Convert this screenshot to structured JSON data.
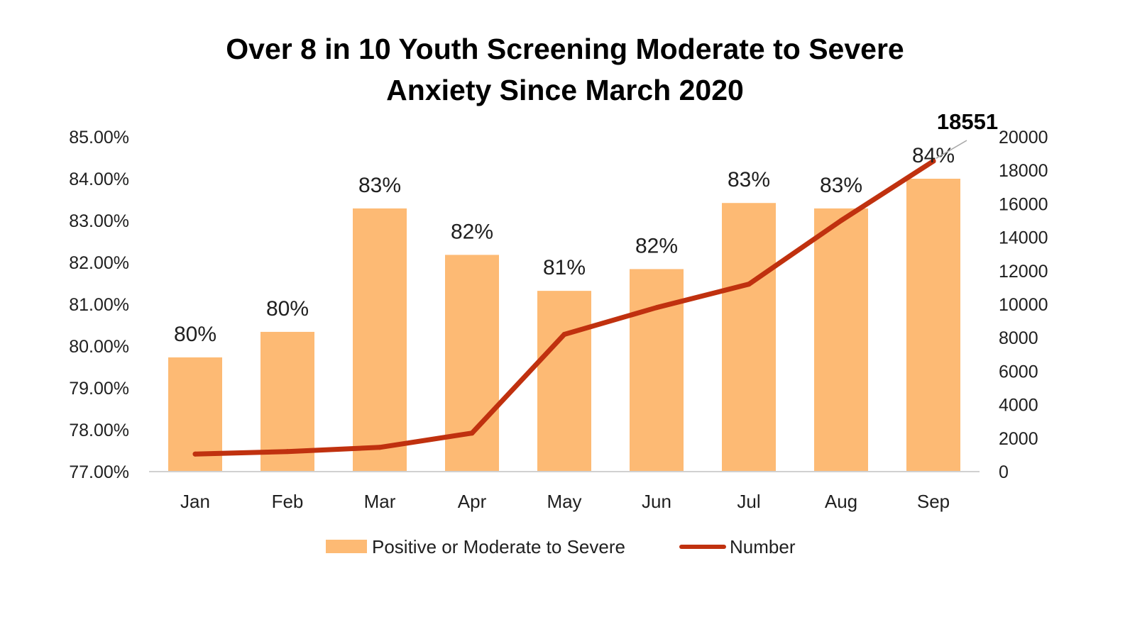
{
  "chart_data": {
    "type": "bar",
    "title_lines": [
      "Over 8 in 10 Youth Screening Moderate to Severe",
      "Anxiety Since March 2020"
    ],
    "categories": [
      "Jan",
      "Feb",
      "Mar",
      "Apr",
      "May",
      "Jun",
      "Jul",
      "Aug",
      "Sep"
    ],
    "series": [
      {
        "name": "Positive or Moderate to Severe",
        "type": "bar",
        "axis": "left",
        "color": "#FDBA74",
        "values": [
          79.73,
          80.34,
          83.29,
          82.18,
          81.32,
          81.84,
          83.42,
          83.29,
          84.0
        ],
        "data_labels": [
          "80%",
          "80%",
          "83%",
          "82%",
          "81%",
          "82%",
          "83%",
          "83%",
          "84%"
        ]
      },
      {
        "name": "Number",
        "type": "line",
        "axis": "right",
        "color": "#C0310F",
        "values": [
          1050,
          1200,
          1450,
          2300,
          8200,
          9800,
          11200,
          15000,
          18551
        ]
      }
    ],
    "y_left": {
      "ylim": [
        77.0,
        85.0
      ],
      "ticks": [
        77,
        78,
        79,
        80,
        81,
        82,
        83,
        84,
        85
      ],
      "tick_labels": [
        "77.00%",
        "78.00%",
        "79.00%",
        "80.00%",
        "81.00%",
        "82.00%",
        "83.00%",
        "84.00%",
        "85.00%"
      ]
    },
    "y_right": {
      "ylim": [
        0,
        20000
      ],
      "ticks": [
        0,
        2000,
        4000,
        6000,
        8000,
        10000,
        12000,
        14000,
        16000,
        18000,
        20000
      ],
      "tick_labels": [
        "0",
        "2000",
        "4000",
        "6000",
        "8000",
        "10000",
        "12000",
        "14000",
        "16000",
        "18000",
        "20000"
      ]
    },
    "callout": {
      "text": "18551",
      "category": "Sep",
      "series": "Number"
    },
    "legend": {
      "position": "bottom",
      "items": [
        "Positive or Moderate to Severe",
        "Number"
      ]
    },
    "grid": false
  }
}
